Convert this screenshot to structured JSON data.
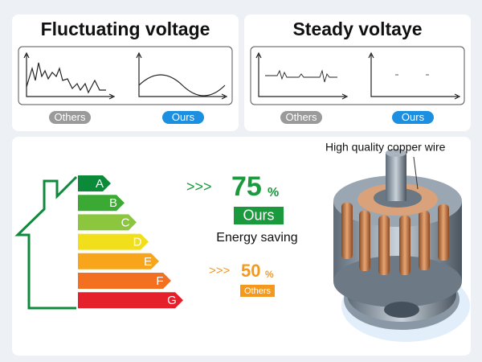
{
  "top_left": {
    "title": "Fluctuating voltage",
    "labels": [
      "Others",
      "Ours"
    ]
  },
  "top_right": {
    "title": "Steady voltaye",
    "labels": [
      "Others",
      "Ours"
    ]
  },
  "energy": {
    "grades": [
      "A",
      "B",
      "C",
      "D",
      "E",
      "F",
      "G"
    ]
  },
  "ours": {
    "arrows": ">>>",
    "percent": "75",
    "percent_sign": "%",
    "label": "Ours",
    "caption": "Energy saving"
  },
  "others": {
    "arrows": ">>>",
    "percent": "50",
    "percent_sign": "%",
    "label": "Others"
  },
  "motor": {
    "callout": "High quality copper wire"
  }
}
